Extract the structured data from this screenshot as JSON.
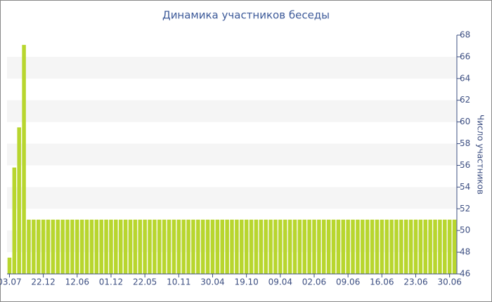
{
  "chart_data": {
    "type": "bar",
    "title": "Динамика участников беседы",
    "y_label": "Число участников",
    "categories": [
      "03.07",
      null,
      null,
      null,
      null,
      null,
      null,
      "22.12",
      null,
      null,
      null,
      null,
      null,
      null,
      "12.06",
      null,
      null,
      null,
      null,
      null,
      null,
      "01.12",
      null,
      null,
      null,
      null,
      null,
      null,
      "22.05",
      null,
      null,
      null,
      null,
      null,
      null,
      "10.11",
      null,
      null,
      null,
      null,
      null,
      null,
      "30.04",
      null,
      null,
      null,
      null,
      null,
      null,
      "19.10",
      null,
      null,
      null,
      null,
      null,
      null,
      "09.04",
      null,
      null,
      null,
      null,
      null,
      null,
      "02.06",
      null,
      null,
      null,
      null,
      null,
      null,
      "09.06",
      null,
      null,
      null,
      null,
      null,
      null,
      "16.06",
      null,
      null,
      null,
      null,
      null,
      null,
      "23.06",
      null,
      null,
      null,
      null,
      null,
      null,
      "30.06",
      null
    ],
    "values": [
      47.5,
      55.8,
      59.5,
      67.1,
      51,
      51,
      51,
      51,
      51,
      51,
      51,
      51,
      51,
      51,
      51,
      51,
      51,
      51,
      51,
      51,
      51,
      51,
      51,
      51,
      51,
      51,
      51,
      51,
      51,
      51,
      51,
      51,
      51,
      51,
      51,
      51,
      51,
      51,
      51,
      51,
      51,
      51,
      51,
      51,
      51,
      51,
      51,
      51,
      51,
      51,
      51,
      51,
      51,
      51,
      51,
      51,
      51,
      51,
      51,
      51,
      51,
      51,
      51,
      51,
      51,
      51,
      51,
      51,
      51,
      51,
      51,
      51,
      51,
      51,
      51,
      51,
      51,
      51,
      51,
      51,
      51,
      51,
      51,
      51,
      51,
      51,
      51,
      51,
      51,
      51,
      51,
      51,
      51
    ],
    "color": "#b8d62e",
    "ylim": [
      46,
      68
    ],
    "yticks": [
      46,
      48,
      50,
      52,
      54,
      56,
      58,
      60,
      62,
      64,
      66,
      68
    ],
    "y_axis_side": "right",
    "banded_grid": true
  }
}
